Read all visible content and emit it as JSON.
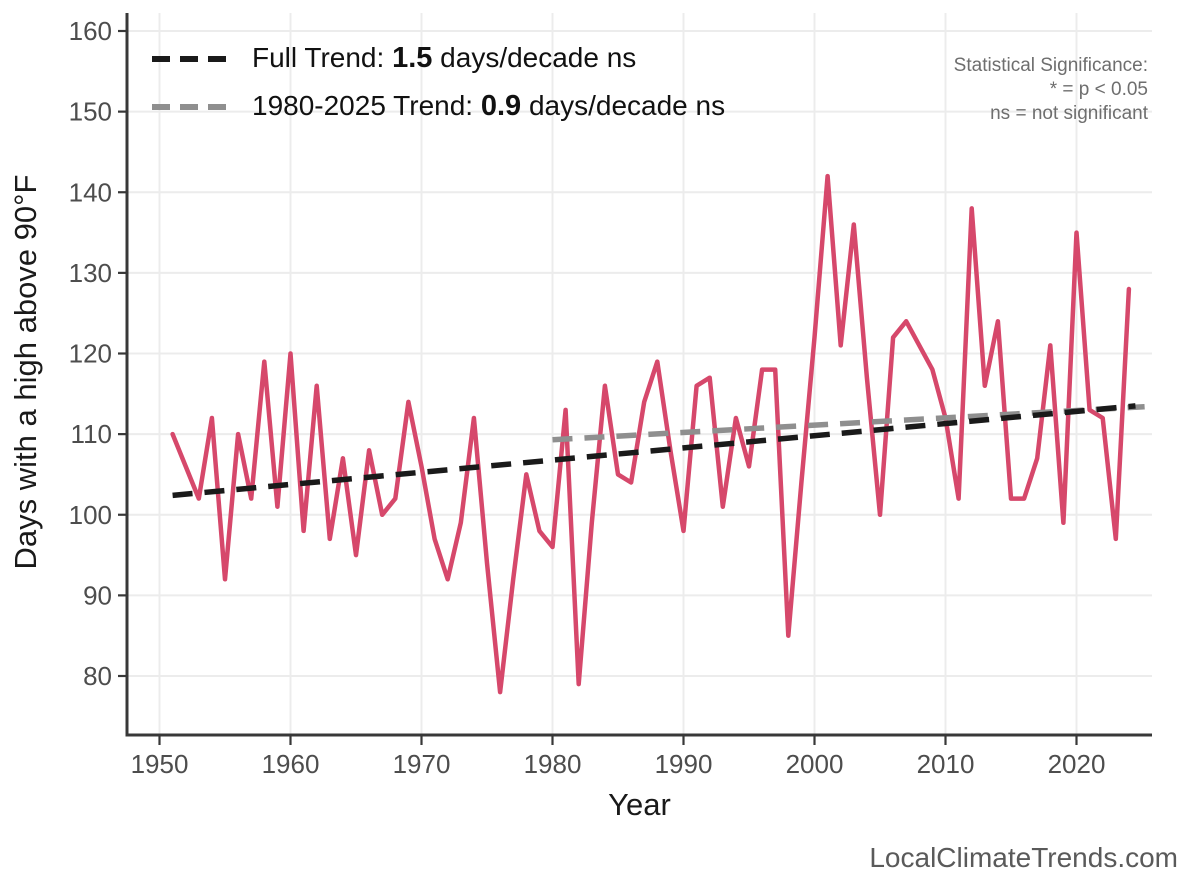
{
  "legend": {
    "full_trend": {
      "prefix": "Full Trend: ",
      "value": "1.5",
      "suffix": " days/decade ns"
    },
    "recent_trend": {
      "prefix": "1980-2025 Trend: ",
      "value": "0.9",
      "suffix": " days/decade ns"
    }
  },
  "significance_note": {
    "line1": "Statistical Significance:",
    "line2": "* = p < 0.05",
    "line3": "ns = not significant"
  },
  "footer": {
    "watermark": "LocalClimateTrends.com"
  },
  "colors": {
    "series": "#D6486B",
    "trend_full": "#1a1a1a",
    "trend_recent": "#8f8f8f",
    "grid": "#ECECEC",
    "spine": "#383838",
    "tick_label": "#4d4d4d",
    "axis_title": "#1a1a1a"
  },
  "chart_data": {
    "type": "line",
    "title": "",
    "xlabel": "Year",
    "ylabel": "Days with a high above 90°F",
    "x_ticks": [
      1950,
      1960,
      1970,
      1980,
      1990,
      2000,
      2010,
      2020
    ],
    "y_ticks": [
      80,
      90,
      100,
      110,
      120,
      130,
      140,
      150,
      160
    ],
    "xlim": [
      1947.5,
      2025.8
    ],
    "ylim": [
      73,
      162
    ],
    "grid": true,
    "legend_position": "top-left",
    "series": [
      {
        "name": "Days with a high above 90°F",
        "color": "#D6486B",
        "years": [
          1951,
          1952,
          1953,
          1954,
          1955,
          1956,
          1957,
          1958,
          1959,
          1960,
          1961,
          1962,
          1963,
          1964,
          1965,
          1966,
          1967,
          1968,
          1969,
          1970,
          1971,
          1972,
          1973,
          1974,
          1975,
          1976,
          1977,
          1978,
          1979,
          1980,
          1981,
          1982,
          1983,
          1984,
          1985,
          1986,
          1987,
          1988,
          1989,
          1990,
          1991,
          1992,
          1993,
          1994,
          1995,
          1996,
          1997,
          1998,
          1999,
          2000,
          2001,
          2002,
          2003,
          2004,
          2005,
          2006,
          2007,
          2008,
          2009,
          2010,
          2011,
          2012,
          2013,
          2014,
          2015,
          2016,
          2017,
          2018,
          2019,
          2020,
          2021,
          2022,
          2023,
          2024
        ],
        "values": [
          110,
          106,
          102,
          112,
          92,
          110,
          102,
          119,
          101,
          120,
          98,
          116,
          97,
          107,
          95,
          108,
          100,
          102,
          114,
          106,
          97,
          92,
          99,
          112,
          94,
          78,
          92,
          105,
          98,
          96,
          113,
          79,
          99,
          116,
          105,
          104,
          114,
          119,
          108,
          98,
          116,
          117,
          101,
          112,
          106,
          118,
          118,
          85,
          104,
          122,
          142,
          121,
          136,
          117,
          100,
          122,
          124,
          121,
          118,
          112,
          102,
          138,
          116,
          124,
          102,
          102,
          107,
          121,
          99,
          135,
          113,
          112,
          97,
          128
        ]
      }
    ],
    "trend_lines": [
      {
        "name": "Full Trend",
        "rate_per_decade": 1.5,
        "significance": "ns",
        "color": "#1a1a1a",
        "style": "dashed",
        "x": [
          1951,
          2024.5
        ],
        "y": [
          102.4,
          113.5
        ]
      },
      {
        "name": "1980-2025 Trend",
        "rate_per_decade": 0.9,
        "significance": "ns",
        "color": "#8f8f8f",
        "style": "dashed",
        "x": [
          1980,
          2025.2
        ],
        "y": [
          109.3,
          113.4
        ]
      }
    ]
  }
}
